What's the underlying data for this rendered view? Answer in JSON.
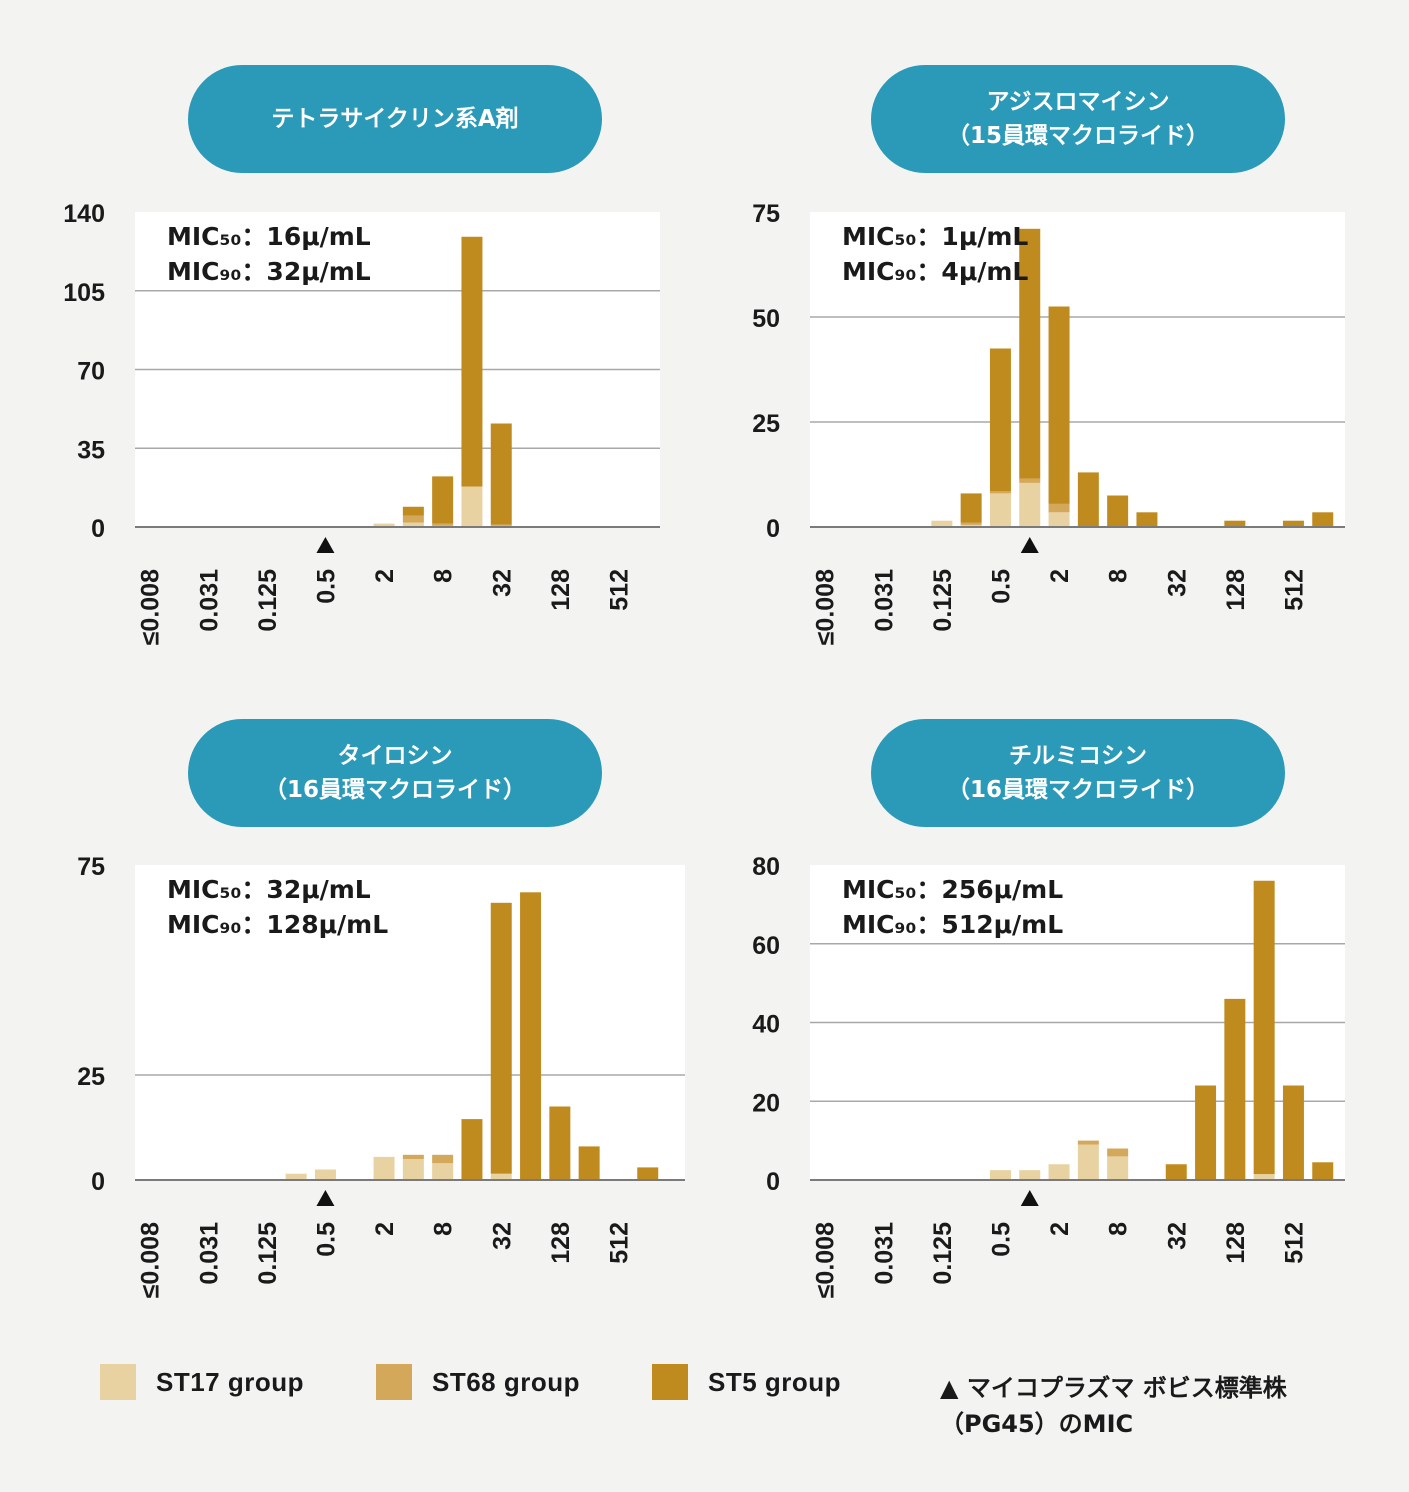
{
  "legend": {
    "items": [
      {
        "label": "ST17 group",
        "color": "#e8d2a2"
      },
      {
        "label": "ST68 group",
        "color": "#d4a85a"
      },
      {
        "label": "ST5 group",
        "color": "#c08b1e"
      }
    ],
    "marker_symbol": "▲",
    "marker_line1": "マイコプラズマ ボビス標準株",
    "marker_line2": "（PG45）のMIC"
  },
  "chart_data": [
    {
      "type": "bar",
      "stacked": true,
      "title": [
        "テトラサイクリン系A剤"
      ],
      "annotation": [
        "MIC₅₀：16μ/mL",
        "MIC₉₀：32μ/mL"
      ],
      "categories": [
        "≤0.008",
        "",
        "0.031",
        "",
        "0.125",
        "",
        "0.5",
        "",
        "2",
        "",
        "8",
        "",
        "32",
        "",
        "128",
        "",
        "512",
        ""
      ],
      "yticks": [
        0,
        35,
        70,
        105,
        140
      ],
      "ylim": [
        0,
        140
      ],
      "grid": true,
      "marker_category": 6,
      "series": [
        {
          "name": "ST17 group",
          "values": [
            0,
            0,
            0,
            0,
            0,
            0,
            0,
            0,
            1.5,
            2,
            0.5,
            18,
            0.5,
            0,
            0,
            0,
            0,
            0
          ]
        },
        {
          "name": "ST68 group",
          "values": [
            0,
            0,
            0,
            0,
            0,
            0,
            0,
            0,
            0,
            3,
            1,
            0,
            0.5,
            0,
            0,
            0,
            0,
            0
          ]
        },
        {
          "name": "ST5 group",
          "values": [
            0,
            0,
            0,
            0,
            0,
            0,
            0,
            0,
            0,
            4,
            21,
            111,
            45,
            0,
            0,
            0,
            0,
            0
          ]
        }
      ]
    },
    {
      "type": "bar",
      "stacked": true,
      "title": [
        "アジスロマイシン",
        "（15員環マクロライド）"
      ],
      "annotation": [
        "MIC₅₀：1μ/mL",
        "MIC₉₀：4μ/mL"
      ],
      "categories": [
        "≤0.008",
        "",
        "0.031",
        "",
        "0.125",
        "",
        "0.5",
        "",
        "2",
        "",
        "8",
        "",
        "32",
        "",
        "128",
        "",
        "512",
        ""
      ],
      "yticks": [
        0,
        25,
        50,
        75
      ],
      "ylim": [
        0,
        75
      ],
      "grid": true,
      "marker_category": 7,
      "series": [
        {
          "name": "ST17 group",
          "values": [
            0,
            0,
            0,
            0,
            1.5,
            0.5,
            8,
            10.5,
            3.5,
            0,
            0,
            0,
            0,
            0,
            0,
            0,
            0,
            0
          ]
        },
        {
          "name": "ST68 group",
          "values": [
            0,
            0,
            0,
            0,
            0,
            0.5,
            0.5,
            1,
            2,
            0,
            0,
            0,
            0,
            0,
            0,
            0,
            0,
            0
          ]
        },
        {
          "name": "ST5 group",
          "values": [
            0,
            0,
            0,
            0,
            0,
            7,
            34,
            59.5,
            47,
            13,
            7.5,
            3.5,
            0,
            0,
            1.5,
            0,
            1.5,
            3.5
          ]
        }
      ]
    },
    {
      "type": "bar",
      "stacked": true,
      "title": [
        "タイロシン",
        "（16員環マクロライド）"
      ],
      "annotation": [
        "MIC₅₀：32μ/mL",
        "MIC₉₀：128μ/mL"
      ],
      "categories": [
        "≤0.008",
        "",
        "0.031",
        "",
        "0.125",
        "",
        "0.5",
        "",
        "2",
        "",
        "8",
        "",
        "32",
        "",
        "128",
        "",
        "512",
        ""
      ],
      "yticks": [
        0,
        25,
        75
      ],
      "ylim": [
        0,
        75
      ],
      "grid": true,
      "marker_category": 6,
      "series": [
        {
          "name": "ST17 group",
          "values": [
            0,
            0,
            0,
            0,
            0,
            1.5,
            2.5,
            0,
            5.5,
            5,
            4,
            0,
            1.5,
            0,
            0,
            0,
            0,
            0
          ]
        },
        {
          "name": "ST68 group",
          "values": [
            0,
            0,
            0,
            0,
            0,
            0,
            0,
            0,
            0,
            1,
            2,
            0,
            0,
            0,
            0,
            0,
            0,
            0
          ]
        },
        {
          "name": "ST5 group",
          "values": [
            0,
            0,
            0,
            0,
            0,
            0,
            0,
            0,
            0,
            0,
            0,
            14.5,
            64.5,
            68.5,
            17.5,
            8,
            0,
            3
          ]
        }
      ]
    },
    {
      "type": "bar",
      "stacked": true,
      "title": [
        "チルミコシン",
        "（16員環マクロライド）"
      ],
      "annotation": [
        "MIC₅₀：256μ/mL",
        "MIC₉₀：512μ/mL"
      ],
      "categories": [
        "≤0.008",
        "",
        "0.031",
        "",
        "0.125",
        "",
        "0.5",
        "",
        "2",
        "",
        "8",
        "",
        "32",
        "",
        "128",
        "",
        "512",
        ""
      ],
      "yticks": [
        0,
        20,
        40,
        60,
        80
      ],
      "ylim": [
        0,
        80
      ],
      "grid": true,
      "marker_category": 7,
      "series": [
        {
          "name": "ST17 group",
          "values": [
            0,
            0,
            0,
            0,
            0,
            0,
            2.5,
            2.5,
            4,
            9,
            6,
            0,
            0,
            0,
            0,
            1.5,
            0,
            0
          ]
        },
        {
          "name": "ST68 group",
          "values": [
            0,
            0,
            0,
            0,
            0,
            0,
            0,
            0,
            0,
            1,
            2,
            0,
            0,
            0,
            0,
            0,
            0,
            0
          ]
        },
        {
          "name": "ST5 group",
          "values": [
            0,
            0,
            0,
            0,
            0,
            0,
            0,
            0,
            0,
            0,
            0,
            0,
            4,
            24,
            46,
            74.5,
            24,
            4.5
          ]
        }
      ]
    }
  ]
}
